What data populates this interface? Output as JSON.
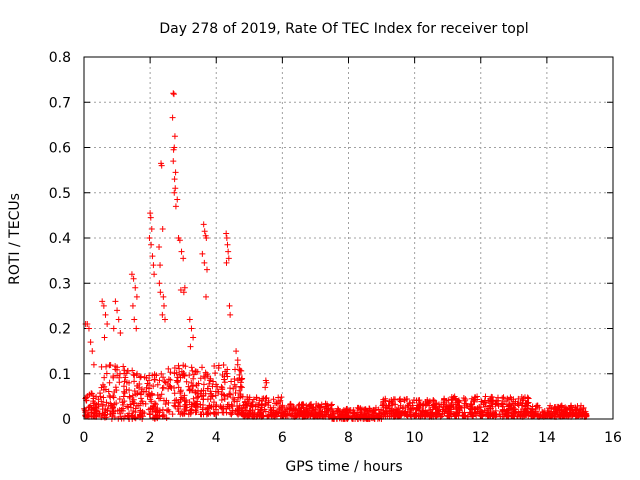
{
  "chart_data": {
    "type": "scatter",
    "title": "Day 278 of 2019, Rate Of TEC Index for receiver topl",
    "xlabel": "GPS time / hours",
    "ylabel": "ROTI / TECUs",
    "xlim": [
      0,
      16
    ],
    "ylim": [
      0,
      0.8
    ],
    "xticks": [
      "0",
      "2",
      "4",
      "6",
      "8",
      "10",
      "12",
      "14",
      "16"
    ],
    "yticks": [
      "0",
      "0.1",
      "0.2",
      "0.3",
      "0.4",
      "0.5",
      "0.6",
      "0.7",
      "0.8"
    ],
    "grid": true,
    "marker": "+",
    "color": "#ff0000",
    "series": [
      {
        "name": "ROTI",
        "x": [
          2.7,
          2.72,
          2.68,
          2.75,
          2.73,
          2.71,
          2.7,
          2.77,
          2.74,
          2.76,
          2.73,
          2.78,
          2.82,
          2.86,
          2.33,
          2.35,
          2.38,
          2.27,
          2.3,
          2.28,
          2.31,
          2.4,
          2.42,
          2.37,
          2.45,
          2.0,
          2.02,
          2.05,
          1.98,
          2.03,
          2.07,
          2.1,
          2.12,
          3.62,
          3.65,
          3.68,
          3.7,
          3.58,
          3.64,
          3.72,
          3.69,
          4.3,
          4.32,
          4.34,
          4.36,
          4.38,
          4.31,
          4.4,
          4.42,
          2.9,
          2.95,
          3.0,
          3.05,
          2.93,
          3.02,
          1.45,
          1.5,
          1.55,
          1.6,
          1.48,
          1.52,
          1.58,
          0.95,
          1.0,
          1.05,
          0.9,
          1.1,
          0.55,
          0.6,
          0.65,
          0.7,
          0.62,
          0.1,
          0.15,
          0.2,
          0.25,
          0.3,
          0.05,
          5.5,
          5.52,
          5.48,
          3.2,
          3.25,
          3.3,
          3.22,
          4.6,
          4.65,
          4.7
        ],
        "y": [
          0.72,
          0.718,
          0.666,
          0.625,
          0.6,
          0.595,
          0.57,
          0.545,
          0.53,
          0.51,
          0.5,
          0.47,
          0.485,
          0.4,
          0.565,
          0.56,
          0.42,
          0.38,
          0.34,
          0.3,
          0.28,
          0.27,
          0.25,
          0.23,
          0.22,
          0.455,
          0.445,
          0.42,
          0.4,
          0.385,
          0.36,
          0.34,
          0.32,
          0.43,
          0.415,
          0.405,
          0.4,
          0.365,
          0.345,
          0.33,
          0.27,
          0.41,
          0.4,
          0.385,
          0.37,
          0.355,
          0.345,
          0.25,
          0.23,
          0.395,
          0.37,
          0.355,
          0.29,
          0.285,
          0.28,
          0.32,
          0.31,
          0.29,
          0.27,
          0.25,
          0.22,
          0.2,
          0.26,
          0.24,
          0.22,
          0.2,
          0.19,
          0.26,
          0.25,
          0.23,
          0.21,
          0.18,
          0.21,
          0.2,
          0.17,
          0.15,
          0.12,
          0.21,
          0.085,
          0.08,
          0.07,
          0.22,
          0.2,
          0.18,
          0.16,
          0.15,
          0.13,
          0.11
        ]
      }
    ],
    "baseline_band": [
      {
        "x0": 0.0,
        "x1": 0.5,
        "lo": 0.005,
        "hi": 0.06
      },
      {
        "x0": 0.5,
        "x1": 1.5,
        "lo": 0.0,
        "hi": 0.12
      },
      {
        "x0": 1.5,
        "x1": 2.5,
        "lo": 0.0,
        "hi": 0.1
      },
      {
        "x0": 2.5,
        "x1": 4.8,
        "lo": 0.01,
        "hi": 0.12
      },
      {
        "x0": 4.8,
        "x1": 6.0,
        "lo": 0.005,
        "hi": 0.05
      },
      {
        "x0": 6.0,
        "x1": 7.5,
        "lo": 0.005,
        "hi": 0.035
      },
      {
        "x0": 7.5,
        "x1": 9.0,
        "lo": 0.0,
        "hi": 0.025
      },
      {
        "x0": 9.0,
        "x1": 11.0,
        "lo": 0.005,
        "hi": 0.045
      },
      {
        "x0": 11.0,
        "x1": 13.5,
        "lo": 0.005,
        "hi": 0.05
      },
      {
        "x0": 13.5,
        "x1": 15.2,
        "lo": 0.005,
        "hi": 0.03
      }
    ]
  }
}
